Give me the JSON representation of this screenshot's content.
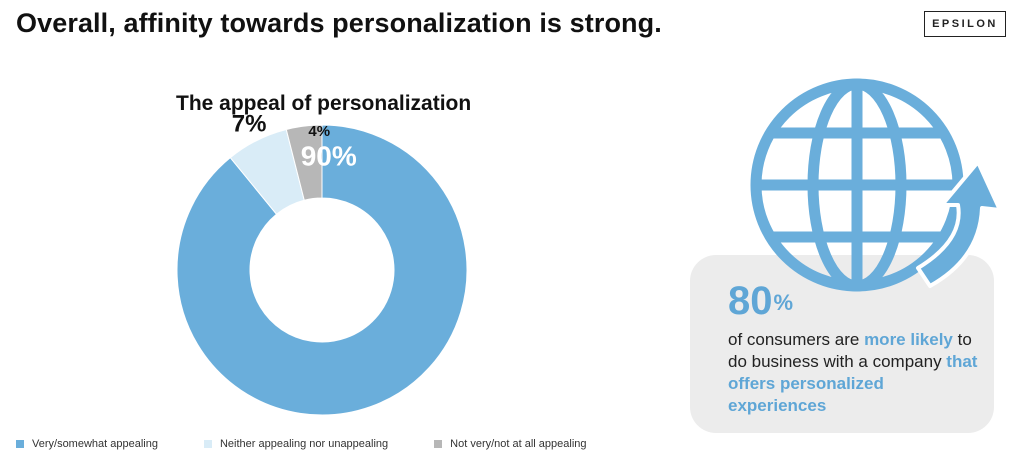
{
  "headline": "Overall, affinity towards personalization is strong.",
  "brand": "EPSILON",
  "chart_data": {
    "type": "pie",
    "title": "The appeal of personalization",
    "categories": [
      "Very/somewhat appealing",
      "Neither appealing nor unappealing",
      "Not very/not at all appealing"
    ],
    "values": [
      90,
      7,
      4
    ],
    "data_labels": [
      "90%",
      "7%",
      "4%"
    ],
    "colors": [
      "#6aaedb",
      "#d9ecf7",
      "#b7b7b7"
    ],
    "donut": true,
    "legend": "bottom-left"
  },
  "callout": {
    "icon": "globe-arrow-icon",
    "value": "80",
    "unit": "%",
    "text_1": "of consumers are ",
    "highlight_1": "more likely",
    "text_2": " to do business with a company ",
    "highlight_2": "that offers personalized experiences",
    "accent_color": "#5fa6d6"
  }
}
